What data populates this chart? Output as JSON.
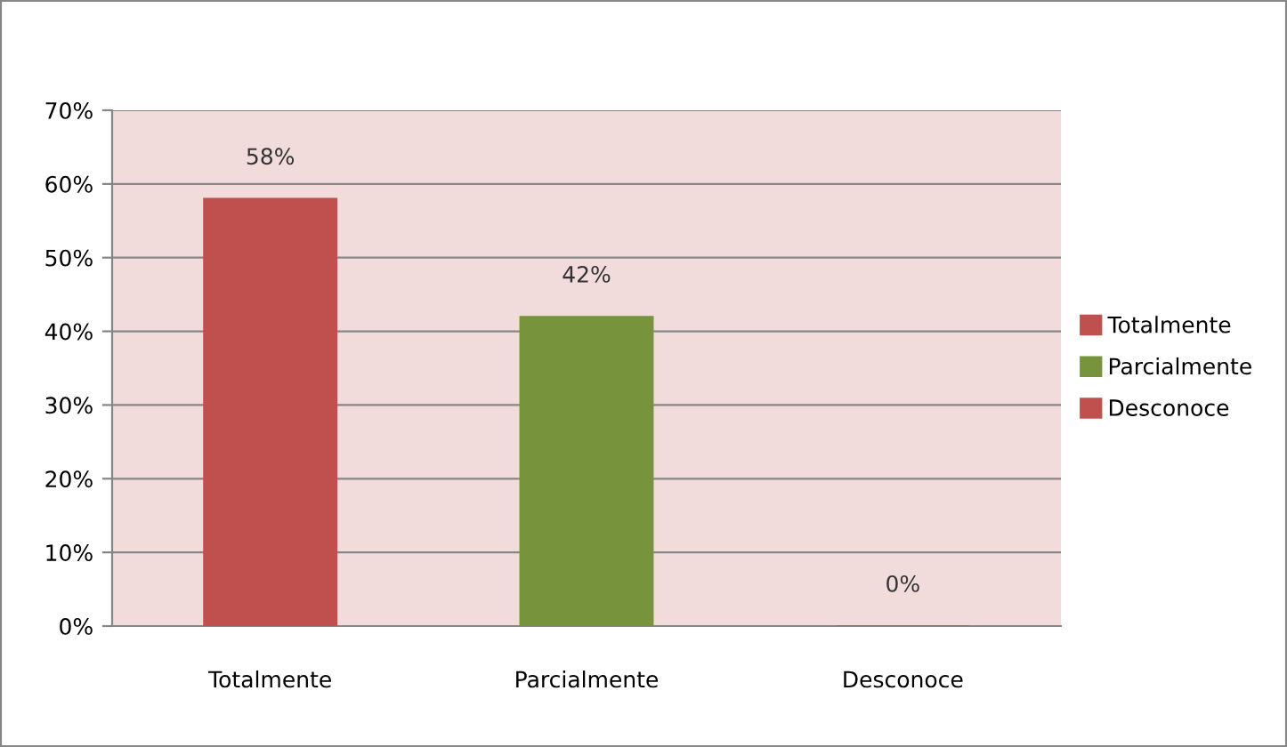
{
  "chart_data": {
    "type": "bar",
    "categories": [
      "Totalmente",
      "Parcialmente",
      "Desconoce"
    ],
    "series": [
      {
        "name": "Totalmente",
        "color": "#c0504d",
        "values": [
          58,
          null,
          null
        ],
        "value_labels": [
          "58%",
          null,
          null
        ]
      },
      {
        "name": "Parcialmente",
        "color": "#77933c",
        "values": [
          null,
          42,
          null
        ],
        "value_labels": [
          null,
          "42%",
          null
        ]
      },
      {
        "name": "Desconoce",
        "color": "#c0504d",
        "values": [
          null,
          null,
          0
        ],
        "value_labels": [
          null,
          null,
          "0%"
        ]
      }
    ],
    "ylim": [
      0,
      70
    ],
    "yticks": [
      {
        "value": 0,
        "label": "0%"
      },
      {
        "value": 10,
        "label": "10%"
      },
      {
        "value": 20,
        "label": "20%"
      },
      {
        "value": 30,
        "label": "30%"
      },
      {
        "value": 40,
        "label": "40%"
      },
      {
        "value": 50,
        "label": "50%"
      },
      {
        "value": 60,
        "label": "60%"
      },
      {
        "value": 70,
        "label": "70%"
      }
    ],
    "grid": "y",
    "legend": "right"
  }
}
